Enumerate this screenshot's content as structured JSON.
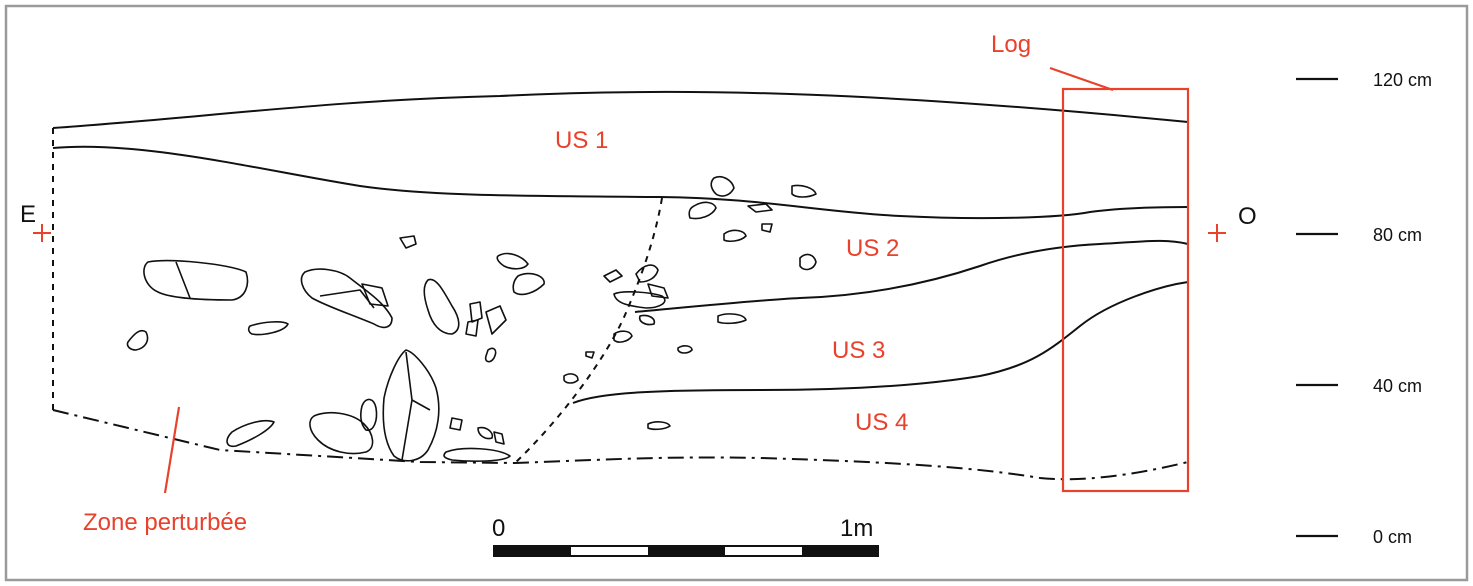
{
  "section": {
    "labels": {
      "east": "E",
      "west": "O",
      "log": "Log",
      "zone": "Zone perturbée"
    },
    "units": [
      "US 1",
      "US 2",
      "US 3",
      "US 4"
    ],
    "scale_bar": {
      "start": "0",
      "end": "1m"
    },
    "depth_ticks": [
      "120 cm",
      "80 cm",
      "40 cm",
      "0 cm"
    ],
    "colors": {
      "annotation": "#e8412c",
      "line": "#111111",
      "frame": "#9a9a9a"
    }
  }
}
